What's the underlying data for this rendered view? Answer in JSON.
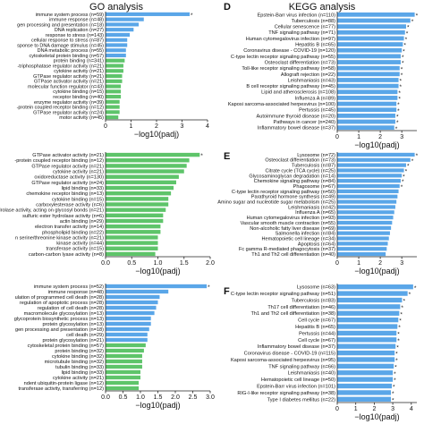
{
  "headers": {
    "go": "GO analysis",
    "kegg": "KEGG analysis",
    "label_d": "D",
    "label_e": "E",
    "label_f": "F"
  },
  "colors": {
    "blue": "#5aa6e8",
    "green": "#5ec46a",
    "axis": "#222222"
  },
  "chart_data": [
    {
      "type": "bar",
      "orientation": "horizontal",
      "categories": [
        "immune system process (n=59)",
        "immune response (n=48)",
        "gen processing and presentation (n=18)",
        "DNA replication (n=27)",
        "response to stress (n=143)",
        "cellular response to stress (n=87)",
        "sponse to DNA damage stimulus (n=45)",
        "DNA metabolic process (n=55)",
        "cytoskeletal protein binding (n=57)",
        "protein binding (n=341)",
        "-triphosphatase regulator activity (n=21)",
        "cytokine activity (n=21)",
        "GTPase regulator activity (n=21)",
        "GTPase activator activity (n=21)",
        "molecular function regulator (n=43)",
        "cytokine binding (n=15)",
        "receptor binding (n=40)",
        "enzyme regulator activity (n=39)",
        "-protein coupled receptor binding (n=12)",
        "GTPase regulator activity (n=24)",
        "motor activity (n=45)"
      ],
      "values": [
        3.3,
        1.5,
        1.3,
        1.1,
        0.95,
        0.85,
        0.85,
        0.8,
        0.8,
        0.75,
        0.7,
        0.7,
        0.65,
        0.65,
        0.6,
        0.6,
        0.6,
        0.55,
        0.55,
        0.55,
        0.5
      ],
      "colors": [
        "#5aa6e8",
        "#5aa6e8",
        "#5aa6e8",
        "#5aa6e8",
        "#5aa6e8",
        "#5aa6e8",
        "#5aa6e8",
        "#5aa6e8",
        "#5aa6e8",
        "#5ec46a",
        "#5ec46a",
        "#5ec46a",
        "#5ec46a",
        "#5ec46a",
        "#5ec46a",
        "#5ec46a",
        "#5ec46a",
        "#5ec46a",
        "#5ec46a",
        "#5ec46a",
        "#5ec46a"
      ],
      "significant": [
        0
      ],
      "xlabel": "−log10(padj)",
      "xlim": [
        0,
        4
      ],
      "xticks": [
        "0",
        "1",
        "2",
        "3",
        "4"
      ]
    },
    {
      "type": "bar",
      "orientation": "horizontal",
      "categories": [
        "GTPase activator activity (n=21)",
        "-protein coupled receptor binding (n=12)",
        "GTPase regulator activity (n=21)",
        "cytokine activity (n=21)",
        "oxidoreductase activity (n=130)",
        "GTPase regulator activity (n=24)",
        "lipid binding (n=33)",
        "chemokine receptor binding (n=13)",
        "cytokine binding (n=15)",
        "carboxylesterase activity (n=6)",
        "hydrolase activity, acting on glycosyl bonds (n=21)",
        "sulfuric ester hydrolase activity (n=6)",
        "actin binding (n=29)",
        "electron transfer activity (n=14)",
        "phospholipid binding (n=22)",
        "n serine/threonine kinase activity (n=21)",
        "kinase activity (n=44)",
        "transferase activity (n=15)",
        "carbon-carbon lyase activity (n=8)"
      ],
      "values": [
        1.8,
        1.6,
        1.55,
        1.5,
        1.4,
        1.35,
        1.3,
        1.25,
        1.2,
        1.2,
        1.15,
        1.1,
        1.1,
        1.05,
        1.05,
        1.0,
        1.0,
        1.0,
        0.95
      ],
      "colors": [
        "#5ec46a",
        "#5ec46a",
        "#5ec46a",
        "#5ec46a",
        "#5ec46a",
        "#5ec46a",
        "#5ec46a",
        "#5ec46a",
        "#5ec46a",
        "#5ec46a",
        "#5ec46a",
        "#5ec46a",
        "#5ec46a",
        "#5ec46a",
        "#5ec46a",
        "#5ec46a",
        "#5ec46a",
        "#5ec46a",
        "#5ec46a"
      ],
      "significant": [
        0
      ],
      "xlabel": "−log10(padj)",
      "xlim": [
        0,
        2.0
      ],
      "xticks": [
        "0.0",
        "0.5",
        "1.0",
        "1.5",
        "2.0"
      ]
    },
    {
      "type": "bar",
      "orientation": "horizontal",
      "categories": [
        "immune system process (n=52)",
        "immune response (n=48)",
        "ulation of programmed cell death (n=28)",
        "regulation of apoptotic process (n=28)",
        "regulation of cell death (n=28)",
        "macromolecule glycosylation (n=13)",
        "glycoprotein biosynthetic process (n=13)",
        "protein glycosylation (n=13)",
        "gen processing and presentation (n=18)",
        "cell death (n=29)",
        "protein glycosylation (n=21)",
        "cytoskeletal protein binding (n=57)",
        "protein binding (n=32)",
        "cytokine binding (n=32)",
        "microtubule binding (n=32)",
        "tubulin binding (n=33)",
        "lipid binding (n=33)",
        "cytokine activity (n=21)",
        "ndent ubiquitin-protein ligase (n=12)",
        "transferase activity, transferring (n=12)"
      ],
      "values": [
        2.9,
        1.8,
        1.55,
        1.5,
        1.45,
        1.4,
        1.3,
        1.3,
        1.25,
        1.2,
        1.2,
        1.15,
        1.1,
        1.05,
        1.05,
        1.05,
        1.0,
        1.0,
        0.95,
        0.95
      ],
      "colors": [
        "#5aa6e8",
        "#5aa6e8",
        "#5aa6e8",
        "#5aa6e8",
        "#5aa6e8",
        "#5aa6e8",
        "#5aa6e8",
        "#5aa6e8",
        "#5aa6e8",
        "#5aa6e8",
        "#5aa6e8",
        "#5ec46a",
        "#5ec46a",
        "#5ec46a",
        "#5ec46a",
        "#5ec46a",
        "#5ec46a",
        "#5ec46a",
        "#5ec46a",
        "#5ec46a"
      ],
      "significant": [
        0
      ],
      "xlabel": "−log10(padj)",
      "xlim": [
        0,
        3.0
      ],
      "xticks": [
        "0.0",
        "0.5",
        "1.0",
        "1.5",
        "2.0",
        "2.5",
        "3.0"
      ]
    },
    {
      "type": "bar",
      "orientation": "horizontal",
      "categories": [
        "Epstein-Barr virus infection (n=110)",
        "Tuberculosis (n=88)",
        "Cellular senescence (n=77)",
        "TNF signaling pathway (n=71)",
        "Human cytomegalovirus infection (n=97)",
        "Hepatitis B (n=65)",
        "Coronavirus disease - COVID-19 (n=120)",
        "C-type lectin receptor signaling pathway (n=55)",
        "Osteoclast differentiation (n=73)",
        "Toll-like receptor signaling pathway (n=58)",
        "Allograft rejection (n=22)",
        "Leishmaniasis (n=43)",
        "B cell receptor signaling pathway (n=45)",
        "Lipid and atherosclerosis (n=108)",
        "Influenza A (n=89)",
        "Kaposi sarcoma-associated herpesvirus (n=100)",
        "Pertussis (n=45)",
        "Autoimmune thyroid disease (n=20)",
        "Pathways in cancer (n=240)",
        "Inflammatory bowel disease (n=37)"
      ],
      "values": [
        3.6,
        3.4,
        3.2,
        3.15,
        3.1,
        3.05,
        3.0,
        2.95,
        2.95,
        2.9,
        2.9,
        2.85,
        2.85,
        2.8,
        2.8,
        2.75,
        2.75,
        2.7,
        2.7,
        2.65
      ],
      "colors": [
        "#5aa6e8",
        "#5aa6e8",
        "#5aa6e8",
        "#5aa6e8",
        "#5aa6e8",
        "#5aa6e8",
        "#5aa6e8",
        "#5aa6e8",
        "#5aa6e8",
        "#5aa6e8",
        "#5aa6e8",
        "#5aa6e8",
        "#5aa6e8",
        "#5aa6e8",
        "#5aa6e8",
        "#5aa6e8",
        "#5aa6e8",
        "#5aa6e8",
        "#5aa6e8",
        "#5aa6e8"
      ],
      "significant": [
        0,
        1,
        2,
        3,
        4,
        5,
        6,
        7,
        8,
        9,
        10,
        11,
        12,
        13,
        14,
        15,
        16,
        17,
        18,
        19
      ],
      "xlabel": "−log10(padj)",
      "xlim": [
        0,
        3.7
      ],
      "xticks": [
        "0",
        "1",
        "2",
        "3"
      ]
    },
    {
      "type": "bar",
      "orientation": "horizontal",
      "categories": [
        "Lysosome (n=72)",
        "Osteoclast differentiation (n=73)",
        "Tuberculosis (n=87)",
        "Citrate cycle (TCA cycle) (n=25)",
        "Glycosaminoglycan degradation (n=14)",
        "Chemokine signaling pathway (n=84)",
        "Phagosome (n=67)",
        "C-type lectin receptor signaling pathway (n=50)",
        "Parathyroid hormone synthesis (n=49)",
        "Amino sugar and nucleotide sugar metabolism (n=25)",
        "Leishmaniasis (n=42)",
        "Influenza A (n=65)",
        "Human cytomegalovirus infection (n=93)",
        "Vascular smooth muscle contraction (n=55)",
        "Non-alcoholic fatty liver disease (n=69)",
        "Salmonella infection (n=84)",
        "Hematopoietic cell lineage (n=34)",
        "Apoptosis (n=64)",
        "Fc gamma R-mediated phagocytosis (n=37)",
        "Th1 and Th2 cell differentiation (n=40)"
      ],
      "values": [
        3.6,
        3.4,
        3.2,
        3.1,
        3.0,
        2.95,
        2.9,
        2.85,
        2.8,
        2.75,
        2.7,
        2.65,
        2.6,
        2.55,
        2.5,
        2.45,
        2.4,
        2.35,
        2.3,
        2.25
      ],
      "colors": [
        "#5aa6e8",
        "#5aa6e8",
        "#5aa6e8",
        "#5aa6e8",
        "#5aa6e8",
        "#5aa6e8",
        "#5aa6e8",
        "#5aa6e8",
        "#5aa6e8",
        "#5aa6e8",
        "#5aa6e8",
        "#5aa6e8",
        "#5aa6e8",
        "#5aa6e8",
        "#5aa6e8",
        "#5aa6e8",
        "#5aa6e8",
        "#5aa6e8",
        "#5aa6e8",
        "#5aa6e8"
      ],
      "significant": [
        0,
        1,
        2,
        3,
        4,
        5,
        6
      ],
      "xlabel": "−log10(padj)",
      "xlim": [
        0,
        3.7
      ],
      "xticks": [
        "0",
        "1",
        "2",
        "3"
      ]
    },
    {
      "type": "bar",
      "orientation": "horizontal",
      "categories": [
        "Lysosome (n=63)",
        "C-type lectin receptor signaling pathway (n=51)",
        "Tuberculosis (n=83)",
        "Th17 cell differentiation (n=46)",
        "Th1 and Th2 cell differentiation (n=38)",
        "Cell cycle (n=67)",
        "Hepatitis B (n=65)",
        "Pertussis (n=44)",
        "Cell cycle (n=67)",
        "Inflammatory bowel disease (n=37)",
        "Coronavirus disease - COVID-19 (n=115)",
        "Kaposi sarcoma-associated herpesvirus (n=95)",
        "TNF signaling pathway (n=66)",
        "Leishmaniasis (n=40)",
        "Hematopoietic cell lineage (n=50)",
        "Epstein-Barr virus infection (n=101)",
        "RIG-I-like receptor signaling pathway (n=38)",
        "Type I diabetes mellitus (n=22)"
      ],
      "values": [
        4.1,
        3.8,
        3.5,
        3.4,
        3.35,
        3.3,
        3.25,
        3.2,
        3.2,
        3.15,
        3.1,
        3.1,
        3.05,
        3.0,
        3.0,
        2.95,
        2.9,
        2.9
      ],
      "colors": [
        "#5aa6e8",
        "#5aa6e8",
        "#5aa6e8",
        "#5aa6e8",
        "#5aa6e8",
        "#5aa6e8",
        "#5aa6e8",
        "#5aa6e8",
        "#5aa6e8",
        "#5aa6e8",
        "#5aa6e8",
        "#5aa6e8",
        "#5aa6e8",
        "#5aa6e8",
        "#5aa6e8",
        "#5aa6e8",
        "#5aa6e8",
        "#5aa6e8"
      ],
      "significant": [
        0,
        1,
        2,
        3,
        4,
        5,
        6,
        7,
        8,
        9,
        10,
        11,
        12,
        13,
        14,
        15,
        16,
        17
      ],
      "xlabel": "−log10(padj)",
      "xlim": [
        0,
        4.3
      ],
      "xticks": [
        "0",
        "1",
        "2",
        "3",
        "4"
      ]
    }
  ]
}
